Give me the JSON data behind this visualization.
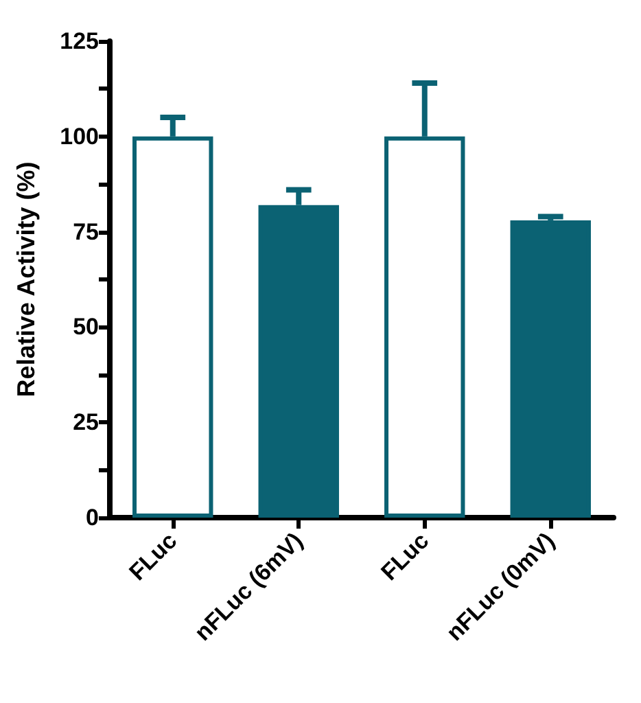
{
  "chart_data": {
    "type": "bar",
    "ylabel": "Relative Activity (%)",
    "categories": [
      "FLuc",
      "nFLuc (6mV)",
      "FLuc",
      "nFLuc (0mV)"
    ],
    "values": [
      100,
      82,
      100,
      78
    ],
    "errors": [
      [
        100,
        105
      ],
      [
        82,
        86
      ],
      [
        100,
        114
      ],
      [
        78,
        79
      ]
    ],
    "color": "#0b6273",
    "colors": [
      "#ffffff",
      "#0b6273",
      "#ffffff",
      "#0b6273"
    ],
    "ylim": [
      0,
      125
    ],
    "yticks": [
      0,
      {
        "value": 12.5,
        "label": null
      },
      25,
      {
        "value": 37.5,
        "label": null
      },
      50,
      {
        "value": 62.5,
        "label": null
      },
      75,
      {
        "value": 87.5,
        "label": null
      },
      100,
      {
        "value": 112.5,
        "label": null
      },
      125
    ],
    "grid": false
  }
}
